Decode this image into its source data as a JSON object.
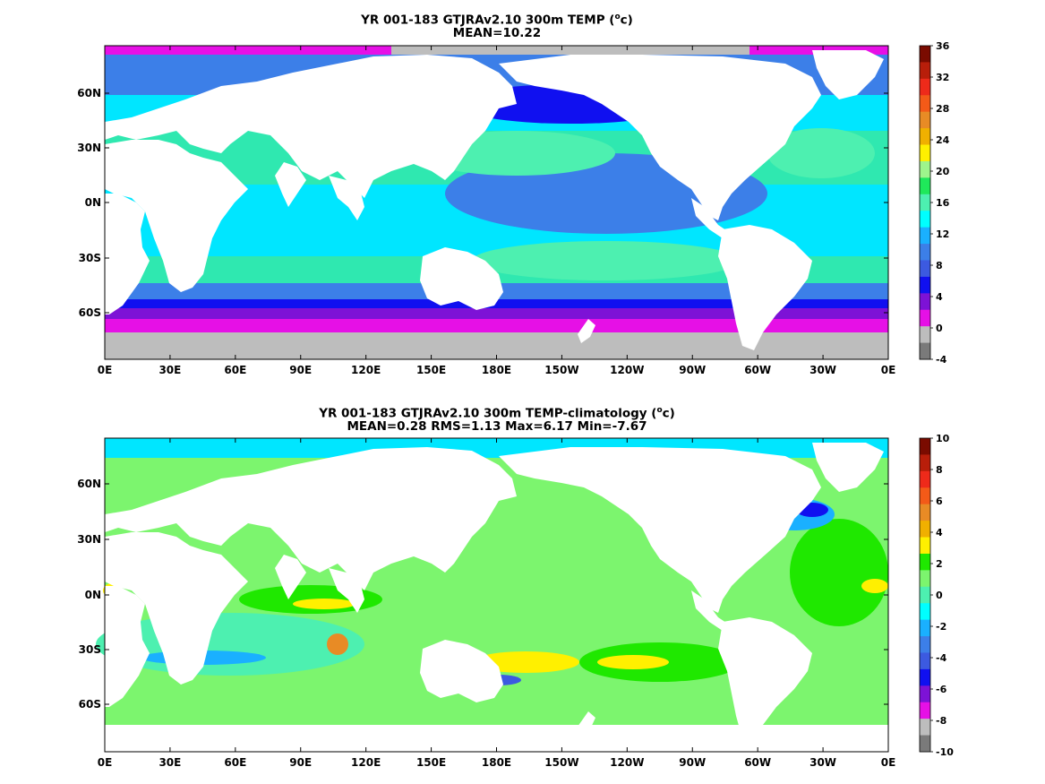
{
  "panels": [
    {
      "title_main": "YR 001-183 GTJRAv2.10 300m TEMP (",
      "title_unit_sup": "o",
      "title_unit_tail": "c)",
      "subtitle": "MEAN=10.22",
      "colorbar_ticks": [
        "36",
        "32",
        "28",
        "24",
        "20",
        "16",
        "12",
        "8",
        "4",
        "0",
        "-4"
      ],
      "colorbar_colors": [
        "#7a0b00",
        "#b81e0a",
        "#ee2a1a",
        "#f35a18",
        "#e88b25",
        "#f0b000",
        "#fff000",
        "#9ef58c",
        "#1fe85a",
        "#4df0b0",
        "#00ffff",
        "#1ab0ff",
        "#3c7fe8",
        "#3c5ae0",
        "#1010f0",
        "#7d12d6",
        "#e610e6",
        "#bdbdbd",
        "#7a7a7a"
      ]
    },
    {
      "title_main": "YR 001-183 GTJRAv2.10 300m TEMP-climatology (",
      "title_unit_sup": "o",
      "title_unit_tail": "c)",
      "subtitle": "MEAN=0.28   RMS=1.13   Max=6.17   Min=-7.67",
      "colorbar_ticks": [
        "10",
        "8",
        "6",
        "4",
        "2",
        "0",
        "-2",
        "-4",
        "-6",
        "-8",
        "-10"
      ],
      "colorbar_colors": [
        "#7a0b00",
        "#b81e0a",
        "#ee2a1a",
        "#f35a18",
        "#e88b25",
        "#f0b000",
        "#fff000",
        "#1fe800",
        "#7cf56e",
        "#4df0b0",
        "#00ffff",
        "#1ab0ff",
        "#3c7fe8",
        "#3c5ae0",
        "#1010f0",
        "#7d12d6",
        "#e610e6",
        "#bdbdbd",
        "#7a7a7a"
      ]
    }
  ],
  "lon_ticks": [
    "0E",
    "30E",
    "60E",
    "90E",
    "120E",
    "150E",
    "180E",
    "150W",
    "120W",
    "90W",
    "60W",
    "30W",
    "0E"
  ],
  "lat_ticks": [
    "60N",
    "30N",
    "0N",
    "30S",
    "60S"
  ]
}
